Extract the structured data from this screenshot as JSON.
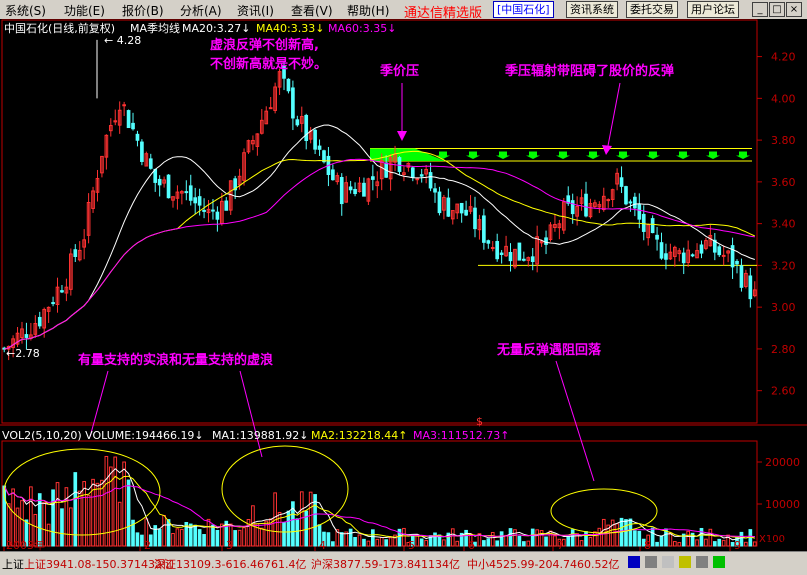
{
  "menu": [
    {
      "label": "系统(S)"
    },
    {
      "label": "功能(E)"
    },
    {
      "label": "报价(B)"
    },
    {
      "label": "分析(A)"
    },
    {
      "label": "资讯(I)"
    },
    {
      "label": "查看(V)"
    },
    {
      "label": "帮助(H)"
    }
  ],
  "app_title": "通达信精选版",
  "current_stock": "[中国石化]",
  "toolbar_buttons": [
    "资讯系统",
    "委托交易",
    "用户论坛"
  ],
  "window_buttons": [
    "minimize-icon",
    "restore-icon",
    "close-icon"
  ],
  "price_header": {
    "name": "中国石化(日线,前复权)",
    "ma_label": "MA季均线",
    "ma20": "MA20:3.27",
    "ma40": "MA40:3.33",
    "ma60": "MA60:3.35"
  },
  "volume_header": {
    "vol": "VOL2(5,10,20) VOLUME:194466.19",
    "ma1": "MA1:139881.92",
    "ma2": "MA2:132218.44",
    "ma3": "MA3:111512.73"
  },
  "annotations": {
    "top_left": [
      "虚浪反弹不创新高,",
      "不创新高就是不妙。"
    ],
    "season_pressure": "季价压",
    "resistance": "季压辐射带阻碍了股价的反弹",
    "volume_waves": "有量支持的实浪和无量支持的虚浪",
    "no_volume": "无量反弹遇阻回落",
    "high_mark": "4.28",
    "low_mark": "2.78"
  },
  "axis_colors": {
    "frame": "#c00000",
    "up": "#ff3232",
    "down": "#54ffff",
    "ma20": "#ffffff",
    "ma40": "#ffff00",
    "ma60": "#ff00ff",
    "annot": "#ff00ff",
    "band": "#00ff00"
  },
  "chart_data": {
    "type": "candlestick",
    "title": "中国石化(日线,前复权)",
    "price_ticks": [
      "4.20",
      "4.00",
      "3.80",
      "3.60",
      "3.40",
      "3.20",
      "3.00",
      "2.80",
      "2.60"
    ],
    "volume_ticks": [
      "20000",
      "10000",
      "X100"
    ],
    "month_labels": [
      "2003年",
      "2",
      "3",
      "4",
      "5",
      "6",
      "7",
      "8",
      "9"
    ],
    "period_label": "日线",
    "resistance_upper": 3.76,
    "resistance_lower": 3.7,
    "support_line": 3.2,
    "high": 4.28,
    "low": 2.78,
    "ylim": [
      2.45,
      4.38
    ],
    "vol_max": 25000
  },
  "status": {
    "segments": [
      "上证3941.08-150.371432亿",
      "深证13109.3-616.46761.4亿",
      "沪深3877.59-173.841134亿",
      "中小4525.99-204.7460.52亿"
    ]
  }
}
